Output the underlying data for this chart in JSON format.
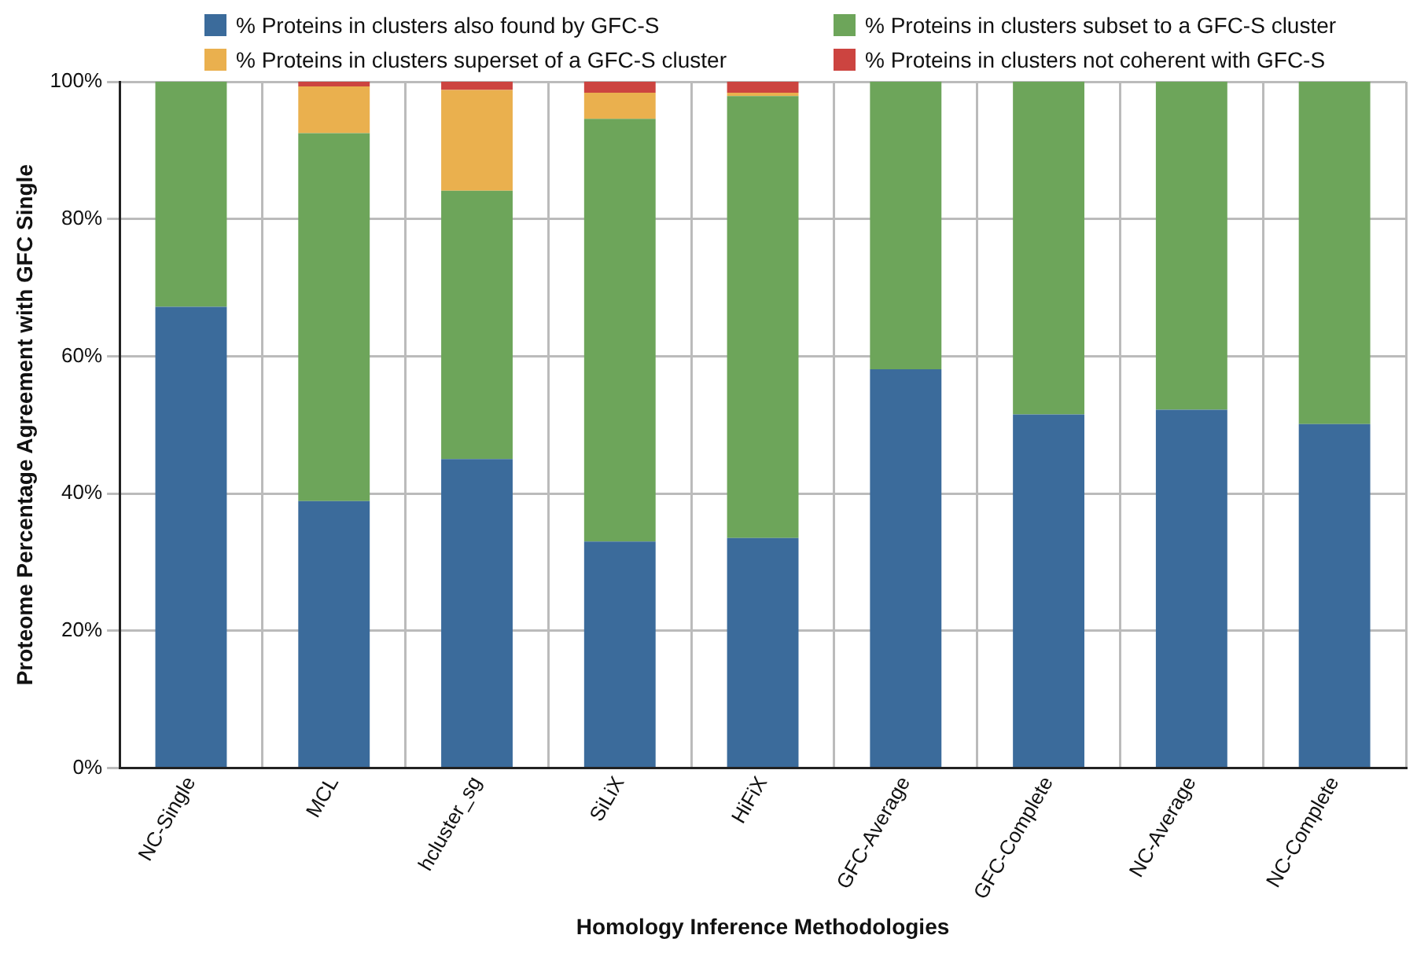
{
  "chart_data": {
    "type": "bar",
    "stacked": true,
    "xlabel": "Homology Inference Methodologies",
    "ylabel": "Proteome Percentage Agreement with GFC Single",
    "categories": [
      "NC-Single",
      "MCL",
      "hcluster_sg",
      "SiLiX",
      "HiFiX",
      "GFC-Average",
      "GFC-Complete",
      "NC-Average",
      "NC-Complete"
    ],
    "series": [
      {
        "name": "% Proteins in clusters also found by GFC-S",
        "color": "#3b6b9b",
        "values": [
          67.2,
          38.9,
          45.0,
          33.0,
          33.5,
          58.1,
          51.5,
          52.2,
          50.1
        ]
      },
      {
        "name": "% Proteins in clusters subset to a GFC-S cluster",
        "color": "#6da55a",
        "values": [
          32.8,
          53.6,
          39.1,
          61.6,
          64.4,
          41.9,
          48.5,
          47.8,
          49.9
        ]
      },
      {
        "name": "% Proteins in clusters superset of a GFC-S cluster",
        "color": "#eab04e",
        "values": [
          0,
          6.8,
          14.7,
          3.8,
          0.5,
          0,
          0,
          0,
          0
        ]
      },
      {
        "name": "% Proteins in clusters not coherent with GFC-S",
        "color": "#cc4440",
        "values": [
          0,
          0.7,
          1.2,
          1.6,
          1.6,
          0,
          0,
          0,
          0
        ]
      }
    ],
    "ylim": [
      0,
      100
    ],
    "yticks": [
      {
        "value": 0,
        "label": "0%"
      },
      {
        "value": 20,
        "label": "20%"
      },
      {
        "value": 40,
        "label": "40%"
      },
      {
        "value": 60,
        "label": "60%"
      },
      {
        "value": 80,
        "label": "80%"
      },
      {
        "value": 100,
        "label": "100%"
      }
    ],
    "grid": true,
    "legend": "top"
  }
}
